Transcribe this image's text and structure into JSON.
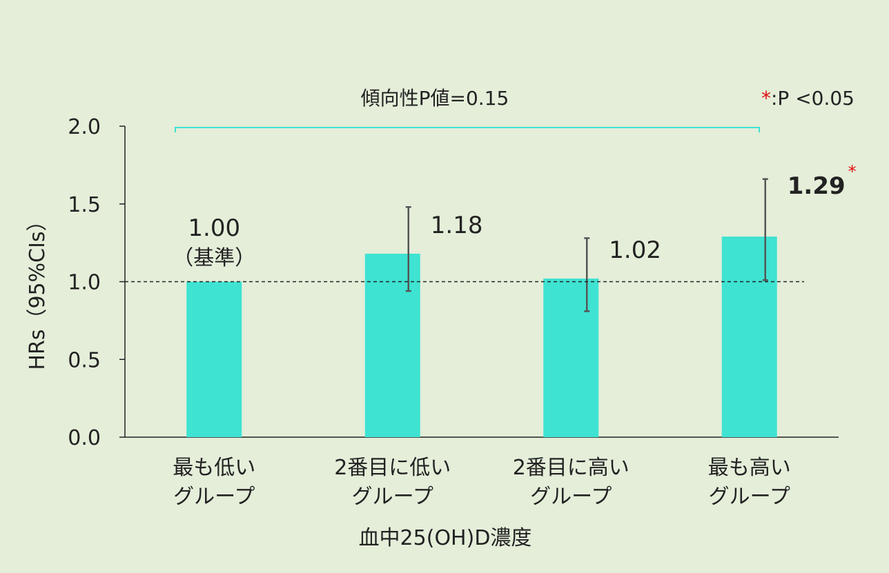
{
  "chart_data": {
    "type": "bar",
    "categories": [
      [
        "最も低い",
        "グループ"
      ],
      [
        "2番目に低い",
        "グループ"
      ],
      [
        "2番目に高い",
        "グループ"
      ],
      [
        "最も高い",
        "グループ"
      ]
    ],
    "values": [
      1.0,
      1.18,
      1.02,
      1.29
    ],
    "value_labels": [
      "1.00",
      "1.18",
      "1.02",
      "1.29"
    ],
    "reference_note": "（基準）",
    "ci_low": [
      null,
      0.94,
      0.81,
      1.01
    ],
    "ci_high": [
      null,
      1.48,
      1.28,
      1.66
    ],
    "significant": [
      false,
      false,
      false,
      true
    ],
    "xlabel": "血中25(OH)D濃度",
    "ylabel": "HRs（95%CIs）",
    "ylim": [
      0,
      2.0
    ],
    "yticks": [
      "0.0",
      "0.5",
      "1.0",
      "1.5",
      "2.0"
    ],
    "reference_line": 1.0,
    "trend_label": "傾向性P値=0.15",
    "significance_mark": "*",
    "significance_legend": ":P <0.05",
    "colors": {
      "bar": "#3ee3d2",
      "trend_bracket": "#3ee3d2",
      "error_bar": "#555555",
      "significance": "#e01010",
      "background": "#e4eed9"
    }
  }
}
